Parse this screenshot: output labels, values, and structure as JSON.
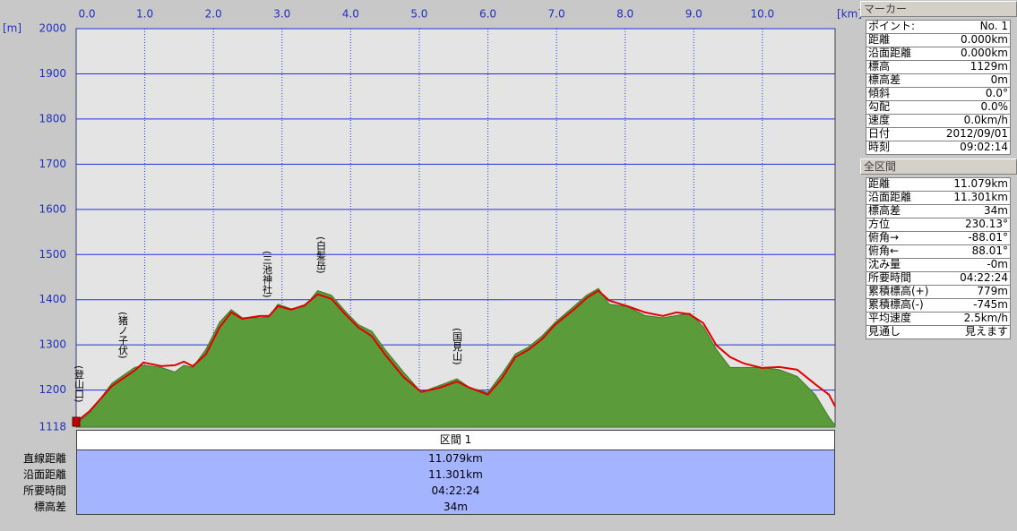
{
  "chart_data": {
    "type": "line",
    "x_unit": "[km]",
    "y_unit": "[m]",
    "x": [
      0,
      0.2,
      0.52,
      0.85,
      0.98,
      1.24,
      1.44,
      1.57,
      1.7,
      1.89,
      2.09,
      2.26,
      2.42,
      2.68,
      2.81,
      2.94,
      3.13,
      3.33,
      3.52,
      3.72,
      3.92,
      4.11,
      4.31,
      4.5,
      4.77,
      5.03,
      5.29,
      5.55,
      5.74,
      6.0,
      6.2,
      6.4,
      6.59,
      6.79,
      6.98,
      7.25,
      7.44,
      7.61,
      7.77,
      8.03,
      8.29,
      8.55,
      8.75,
      8.94,
      9.14,
      9.33,
      9.53,
      9.73,
      9.99,
      10.25,
      10.51,
      10.77,
      10.97,
      11.06
    ],
    "series": [
      {
        "color": "#5b9b3a",
        "fill": true,
        "values": [
          1125,
          1150,
          1215,
          1250,
          1255,
          1250,
          1240,
          1255,
          1250,
          1290,
          1350,
          1378,
          1360,
          1360,
          1362,
          1390,
          1380,
          1385,
          1420,
          1410,
          1375,
          1345,
          1330,
          1290,
          1240,
          1195,
          1210,
          1225,
          1205,
          1195,
          1235,
          1280,
          1295,
          1320,
          1350,
          1385,
          1410,
          1425,
          1390,
          1385,
          1365,
          1360,
          1365,
          1370,
          1340,
          1290,
          1250,
          1250,
          1250,
          1245,
          1230,
          1190,
          1140,
          1122
        ]
      },
      {
        "color": "#e00000",
        "fill": false,
        "values": [
          1129,
          1154,
          1209,
          1243,
          1261,
          1253,
          1255,
          1263,
          1253,
          1279,
          1339,
          1372,
          1358,
          1364,
          1364,
          1386,
          1378,
          1388,
          1412,
          1402,
          1368,
          1339,
          1319,
          1279,
          1229,
          1196,
          1205,
          1219,
          1205,
          1190,
          1225,
          1273,
          1289,
          1313,
          1345,
          1378,
          1404,
          1420,
          1398,
          1386,
          1372,
          1364,
          1372,
          1368,
          1348,
          1299,
          1273,
          1259,
          1249,
          1251,
          1245,
          1213,
          1190,
          1164
        ]
      }
    ],
    "xlim": [
      0,
      11.06
    ],
    "xticks": [
      {
        "value": 0,
        "label": "0.0"
      },
      {
        "value": 1,
        "label": "1.0"
      },
      {
        "value": 2,
        "label": "2.0"
      },
      {
        "value": 3,
        "label": "3.0"
      },
      {
        "value": 4,
        "label": "4.0"
      },
      {
        "value": 5,
        "label": "5.0"
      },
      {
        "value": 6,
        "label": "6.0"
      },
      {
        "value": 7,
        "label": "7.0"
      },
      {
        "value": 8,
        "label": "8.0"
      },
      {
        "value": 9,
        "label": "9.0"
      },
      {
        "value": 10,
        "label": "10.0"
      }
    ],
    "ylim": [
      1118,
      2000
    ],
    "yticks": [
      1118,
      1200,
      1300,
      1400,
      1500,
      1600,
      1700,
      1800,
      1900,
      2000
    ],
    "grid": true,
    "annotations": [
      "(登山口)",
      "(猪ノ子伏)",
      "(三池神社)",
      "(白髪岳)",
      "(国見山)"
    ]
  },
  "segment_table": {
    "title": "区間 1",
    "rows": [
      [
        "直線距離",
        "11.079km"
      ],
      [
        "沿面距離",
        "11.301km"
      ],
      [
        "所要時間",
        "04:22:24"
      ],
      [
        "標高差",
        "34m"
      ]
    ]
  },
  "marker_panel": {
    "title": "マーカー",
    "rows": [
      [
        "ポイント:",
        "No. 1"
      ],
      [
        "距離",
        "0.000km"
      ],
      [
        "沿面距離",
        "0.000km"
      ],
      [
        "標高",
        "1129m"
      ],
      [
        "標高差",
        "0m"
      ],
      [
        "傾斜",
        "0.0°"
      ],
      [
        "勾配",
        "0.0%"
      ],
      [
        "速度",
        "0.0km/h"
      ],
      [
        "日付",
        "2012/09/01"
      ],
      [
        "時刻",
        "09:02:14"
      ]
    ]
  },
  "total_panel": {
    "title": "全区間",
    "rows": [
      [
        "距離",
        "11.079km"
      ],
      [
        "沿面距離",
        "11.301km"
      ],
      [
        "標高差",
        "34m"
      ],
      [
        "方位",
        "230.13°"
      ],
      [
        "俯角→",
        "-88.01°"
      ],
      [
        "俯角←",
        "88.01°"
      ],
      [
        "沈み量",
        "-0m"
      ],
      [
        "所要時間",
        "04:22:24"
      ],
      [
        "累積標高(+)",
        "779m"
      ],
      [
        "累積標高(-)",
        "-745m"
      ],
      [
        "平均速度",
        "2.5km/h"
      ],
      [
        "見通し",
        "見えます"
      ]
    ]
  }
}
